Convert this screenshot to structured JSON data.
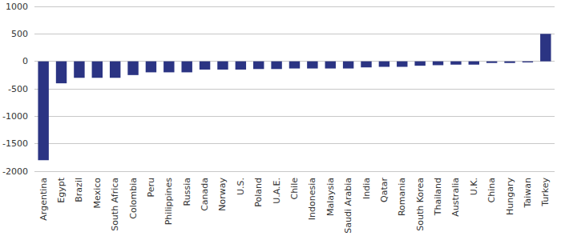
{
  "chart_data": {
    "type": "bar",
    "categories": [
      "Argentina",
      "Egypt",
      "Brazil",
      "Mexico",
      "South Africa",
      "Colombia",
      "Peru",
      "Philippines",
      "Russia",
      "Canada",
      "Norway",
      "U.S.",
      "Poland",
      "U.A.E.",
      "Chile",
      "Indonesia",
      "Malaysia",
      "Saudi Arabia",
      "India",
      "Qatar",
      "Romania",
      "South Korea",
      "Thailand",
      "Australia",
      "U.K.",
      "China",
      "Hungary",
      "Taiwan",
      "Turkey"
    ],
    "values": [
      -1800,
      -400,
      -300,
      -300,
      -300,
      -250,
      -200,
      -200,
      -200,
      -150,
      -150,
      -150,
      -140,
      -140,
      -130,
      -130,
      -130,
      -130,
      -110,
      -100,
      -100,
      -80,
      -70,
      -60,
      -60,
      -30,
      -30,
      -20,
      500
    ],
    "color": "#2b3483",
    "ylim": [
      -2000,
      1000
    ],
    "yticks": [
      -2000,
      -1500,
      -1000,
      -500,
      0,
      500,
      1000
    ],
    "grid": true
  }
}
